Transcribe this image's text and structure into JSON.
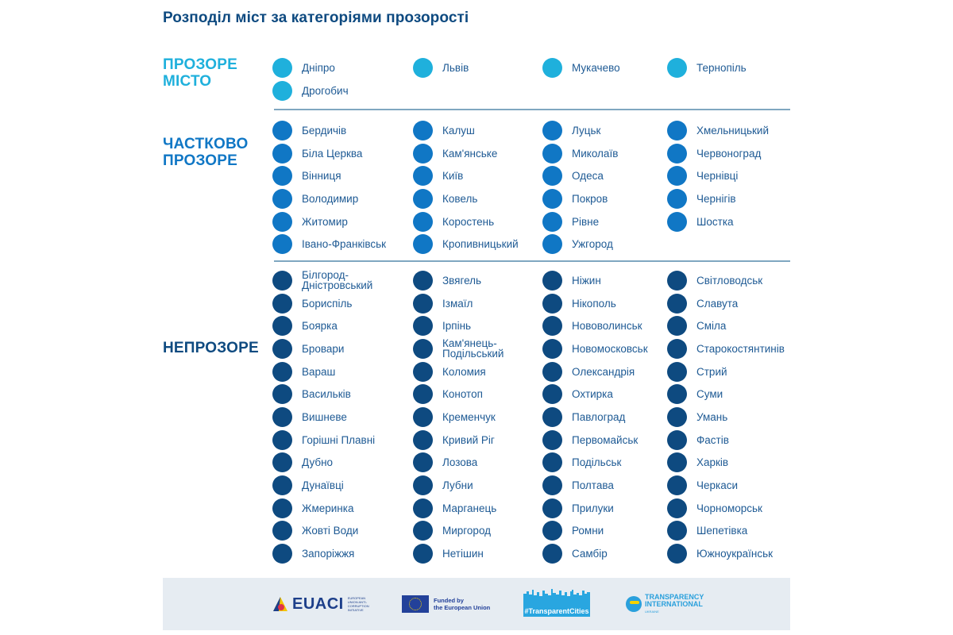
{
  "title": "Розподіл міст за категоріями прозорості",
  "colors": {
    "transparent": "#1fb0dc",
    "partial": "#1077c5",
    "opaque": "#0e4a80",
    "divider": "#7fa7c0",
    "footer_bg": "#e6ecf2"
  },
  "categories": [
    {
      "label_lines": [
        "ПРОЗОРЕ",
        "МІСТО"
      ],
      "color": "#1fb0dc",
      "cities": [
        "Дніпро",
        "Львів",
        "Мукачево",
        "Тернопіль",
        "Дрогобич"
      ]
    },
    {
      "label_lines": [
        "ЧАСТКОВО",
        "ПРОЗОРЕ"
      ],
      "color": "#1077c5",
      "columns": [
        [
          "Бердичів",
          "Біла Церква",
          "Вінниця",
          "Володимир",
          "Житомир",
          "Івано-Франківськ"
        ],
        [
          "Калуш",
          "Кам'янське",
          "Київ",
          "Ковель",
          "Коростень",
          "Кропивницький"
        ],
        [
          "Луцьк",
          "Миколаїв",
          "Одеса",
          "Покров",
          "Рівне",
          "Ужгород"
        ],
        [
          "Хмельницький",
          "Червоноград",
          "Чернівці",
          "Чернігів",
          "Шостка"
        ]
      ]
    },
    {
      "label_lines": [
        "НЕПРОЗОРЕ"
      ],
      "color": "#0e4a80",
      "columns": [
        [
          "Білгород-Дністровський",
          "Бориспіль",
          "Боярка",
          "Бровари",
          "Вараш",
          "Васильків",
          "Вишневе",
          "Горішні Плавні",
          "Дубно",
          "Дунаївці",
          "Жмеринка",
          "Жовті Води",
          "Запоріжжя"
        ],
        [
          "Звягель",
          "Ізмаїл",
          "Ірпінь",
          "Кам'янець-Подільський",
          "Коломия",
          "Конотоп",
          "Кременчук",
          "Кривий Ріг",
          "Лозова",
          "Лубни",
          "Марганець",
          "Миргород",
          "Нетішин"
        ],
        [
          "Ніжин",
          "Нікополь",
          "Нововолинськ",
          "Новомосковськ",
          "Олександрія",
          "Охтирка",
          "Павлоград",
          "Первомайськ",
          "Подільськ",
          "Полтава",
          "Прилуки",
          "Ромни",
          "Самбір"
        ],
        [
          "Світловодськ",
          "Славута",
          "Сміла",
          "Старокостянтинів",
          "Стрий",
          "Суми",
          "Умань",
          "Фастів",
          "Харків",
          "Черкаси",
          "Чорноморськ",
          "Шепетівка",
          "Южноукраїнськ"
        ]
      ]
    }
  ],
  "footer": {
    "logos": [
      {
        "name": "EUACI",
        "text": "EUACI",
        "subtext": "EUROPEAN UNION ANTI-CORRUPTION INITIATIVE"
      },
      {
        "name": "EU",
        "text_lines": [
          "Funded by",
          "the European Union"
        ]
      },
      {
        "name": "TransparentCities",
        "text": "#TransparentCities"
      },
      {
        "name": "Transparency International Ukraine",
        "text_lines": [
          "TRANSPARENCY",
          "INTERNATIONAL"
        ],
        "subtext": "UKRAINE"
      }
    ]
  }
}
